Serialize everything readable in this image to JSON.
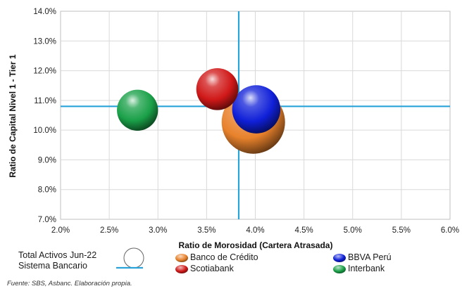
{
  "chart_data": {
    "type": "bubble",
    "title": "",
    "xlabel": "Ratio de Morosidad (Cartera Atrasada)",
    "ylabel": "Ratio de Capital Nivel 1 - Tier 1",
    "xlim": [
      2.0,
      6.0
    ],
    "ylim": [
      7.0,
      14.0
    ],
    "x_ticks": [
      "2.0%",
      "2.5%",
      "3.0%",
      "3.5%",
      "4.0%",
      "4.5%",
      "5.0%",
      "5.5%",
      "6.0%"
    ],
    "y_ticks": [
      "7.0%",
      "8.0%",
      "9.0%",
      "10.0%",
      "11.0%",
      "12.0%",
      "13.0%",
      "14.0%"
    ],
    "grid": true,
    "reference_lines": {
      "x": 3.83,
      "y": 10.8,
      "label": "Sistema Bancario",
      "color": "#29a3d8"
    },
    "series": [
      {
        "name": "Banco de Crédito",
        "x": 3.98,
        "y": 10.27,
        "size": 1.0,
        "color": "#e8822c"
      },
      {
        "name": "BBVA Perú",
        "x": 4.01,
        "y": 10.7,
        "size": 0.58,
        "color": "#1020d8"
      },
      {
        "name": "Scotiabank",
        "x": 3.61,
        "y": 11.38,
        "size": 0.44,
        "color": "#d01818"
      },
      {
        "name": "Interbank",
        "x": 2.79,
        "y": 10.67,
        "size": 0.42,
        "color": "#1aa048"
      }
    ]
  },
  "legend": {
    "size_label": "Total Activos Jun-22",
    "line_label": "Sistema Bancario",
    "entries": [
      "Banco de Crédito",
      "BBVA Perú",
      "Scotiabank",
      "Interbank"
    ]
  },
  "source": "Fuente: SBS, Asbanc. Elaboración propia."
}
